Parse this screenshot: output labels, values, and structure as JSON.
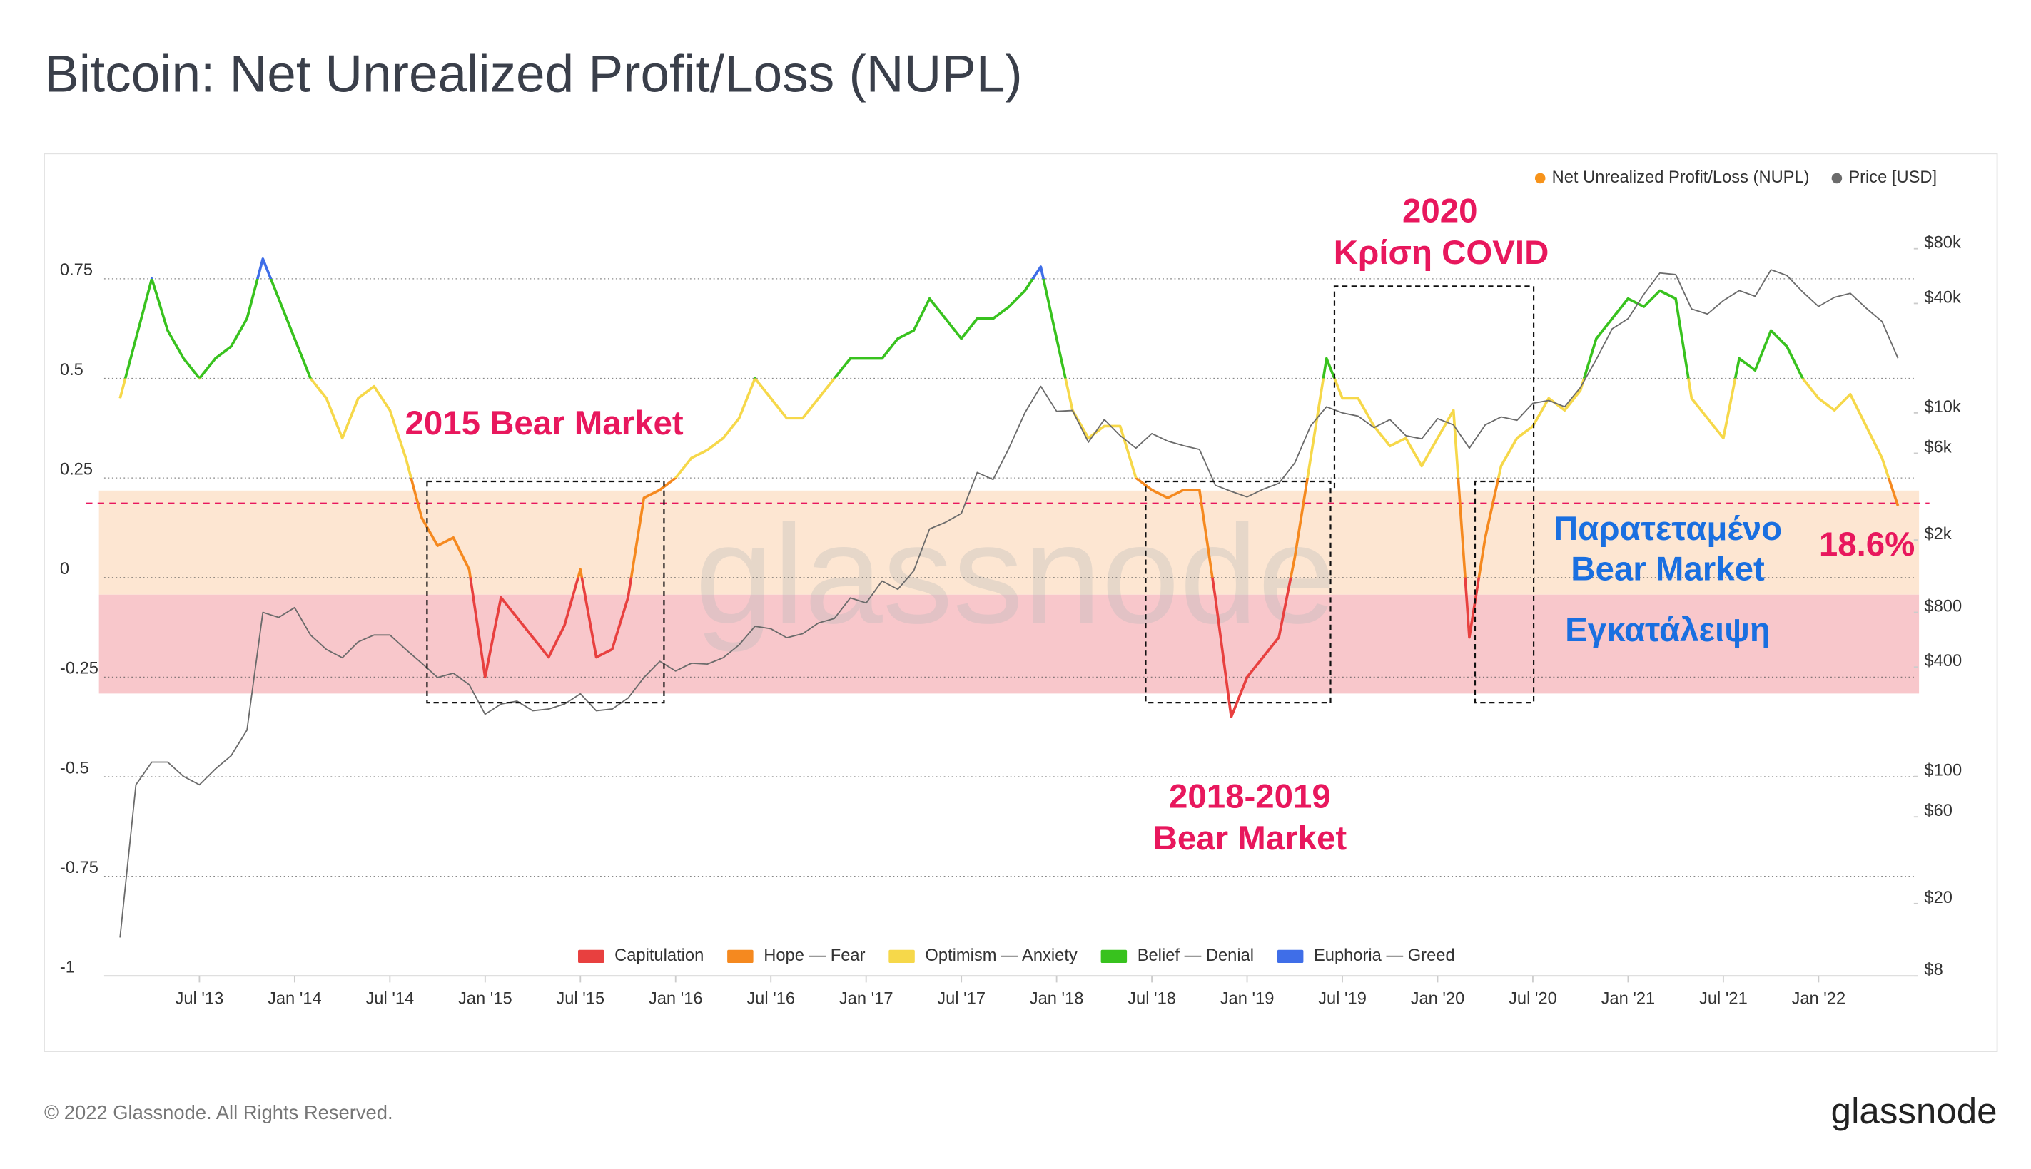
{
  "title": "Bitcoin: Net Unrealized Profit/Loss (NUPL)",
  "chart_data": {
    "type": "line",
    "x": [
      "2013-02",
      "2013-03",
      "2013-04",
      "2013-05",
      "2013-06",
      "2013-07",
      "2013-08",
      "2013-09",
      "2013-10",
      "2013-11",
      "2013-12",
      "2014-01",
      "2014-02",
      "2014-03",
      "2014-04",
      "2014-05",
      "2014-06",
      "2014-07",
      "2014-08",
      "2014-09",
      "2014-10",
      "2014-11",
      "2014-12",
      "2015-01",
      "2015-02",
      "2015-03",
      "2015-04",
      "2015-05",
      "2015-06",
      "2015-07",
      "2015-08",
      "2015-09",
      "2015-10",
      "2015-11",
      "2015-12",
      "2016-01",
      "2016-02",
      "2016-03",
      "2016-04",
      "2016-05",
      "2016-06",
      "2016-07",
      "2016-08",
      "2016-09",
      "2016-10",
      "2016-11",
      "2016-12",
      "2017-01",
      "2017-02",
      "2017-03",
      "2017-04",
      "2017-05",
      "2017-06",
      "2017-07",
      "2017-08",
      "2017-09",
      "2017-10",
      "2017-11",
      "2017-12",
      "2018-01",
      "2018-02",
      "2018-03",
      "2018-04",
      "2018-05",
      "2018-06",
      "2018-07",
      "2018-08",
      "2018-09",
      "2018-10",
      "2018-11",
      "2018-12",
      "2019-01",
      "2019-02",
      "2019-03",
      "2019-04",
      "2019-05",
      "2019-06",
      "2019-07",
      "2019-08",
      "2019-09",
      "2019-10",
      "2019-11",
      "2019-12",
      "2020-01",
      "2020-02",
      "2020-03",
      "2020-04",
      "2020-05",
      "2020-06",
      "2020-07",
      "2020-08",
      "2020-09",
      "2020-10",
      "2020-11",
      "2020-12",
      "2021-01",
      "2021-02",
      "2021-03",
      "2021-04",
      "2021-05",
      "2021-06",
      "2021-07",
      "2021-08",
      "2021-09",
      "2021-10",
      "2021-11",
      "2021-12",
      "2022-01",
      "2022-02",
      "2022-03",
      "2022-04",
      "2022-05",
      "2022-06"
    ],
    "series": [
      {
        "name": "Net Unrealized Profit/Loss (NUPL)",
        "color": "#f7931a",
        "values": [
          0.45,
          0.6,
          0.75,
          0.62,
          0.55,
          0.5,
          0.55,
          0.58,
          0.65,
          0.8,
          0.7,
          0.6,
          0.5,
          0.45,
          0.35,
          0.45,
          0.48,
          0.42,
          0.3,
          0.15,
          0.08,
          0.1,
          0.02,
          -0.25,
          -0.05,
          -0.1,
          -0.15,
          -0.2,
          -0.12,
          0.02,
          -0.2,
          -0.18,
          -0.05,
          0.2,
          0.22,
          0.25,
          0.3,
          0.32,
          0.35,
          0.4,
          0.5,
          0.45,
          0.4,
          0.4,
          0.45,
          0.5,
          0.55,
          0.55,
          0.55,
          0.6,
          0.62,
          0.7,
          0.65,
          0.6,
          0.65,
          0.65,
          0.68,
          0.72,
          0.78,
          0.6,
          0.42,
          0.35,
          0.38,
          0.38,
          0.25,
          0.22,
          0.2,
          0.22,
          0.22,
          -0.05,
          -0.35,
          -0.25,
          -0.2,
          -0.15,
          0.05,
          0.3,
          0.55,
          0.45,
          0.45,
          0.38,
          0.33,
          0.35,
          0.28,
          0.35,
          0.42,
          -0.15,
          0.1,
          0.28,
          0.35,
          0.38,
          0.45,
          0.42,
          0.47,
          0.6,
          0.65,
          0.7,
          0.68,
          0.72,
          0.7,
          0.45,
          0.4,
          0.35,
          0.55,
          0.52,
          0.62,
          0.58,
          0.5,
          0.45,
          0.42,
          0.46,
          0.38,
          0.3,
          0.18
        ]
      },
      {
        "name": "Price [USD]",
        "color": "#6b6b6b",
        "axis": "y2",
        "values": [
          13,
          90,
          120,
          120,
          100,
          90,
          110,
          130,
          180,
          800,
          750,
          850,
          600,
          500,
          450,
          550,
          600,
          600,
          500,
          420,
          350,
          370,
          320,
          220,
          250,
          260,
          230,
          235,
          250,
          285,
          230,
          235,
          270,
          350,
          430,
          380,
          420,
          415,
          450,
          530,
          670,
          650,
          580,
          610,
          700,
          740,
          960,
          900,
          1190,
          1070,
          1350,
          2300,
          2500,
          2800,
          4700,
          4300,
          6400,
          10000,
          14000,
          10200,
          10300,
          6900,
          9200,
          7500,
          6400,
          7700,
          7000,
          6600,
          6300,
          4000,
          3700,
          3450,
          3800,
          4100,
          5300,
          8500,
          10800,
          10000,
          9600,
          8300,
          9200,
          7500,
          7200,
          9300,
          8600,
          6400,
          8600,
          9500,
          9100,
          11300,
          11700,
          10800,
          13800,
          19700,
          29000,
          33000,
          45000,
          58800,
          57700,
          37300,
          35000,
          41500,
          47100,
          43800,
          61300,
          57000,
          46300,
          38500,
          43200,
          45500,
          37700,
          31800,
          20000
        ]
      }
    ],
    "zones": [
      {
        "name": "Capitulation",
        "color": "#e8403f",
        "from": -1,
        "to": 0
      },
      {
        "name": "Hope — Fear",
        "color": "#f5891f",
        "from": 0,
        "to": 0.25
      },
      {
        "name": "Optimism — Anxiety",
        "color": "#f6d84a",
        "from": 0.25,
        "to": 0.5
      },
      {
        "name": "Belief — Denial",
        "color": "#38c21e",
        "from": 0.5,
        "to": 0.75
      },
      {
        "name": "Euphoria — Greed",
        "color": "#3f6ee8",
        "from": 0.75,
        "to": 1
      }
    ],
    "ylim": [
      -1,
      0.95
    ],
    "yticks": [
      0.75,
      0.5,
      0.25,
      0,
      -0.25,
      -0.5,
      -0.75,
      -1
    ],
    "y2lim": [
      8,
      150000
    ],
    "y2scale": "log",
    "y2ticks": [
      {
        "value": 80000,
        "label": "$80k"
      },
      {
        "value": 40000,
        "label": "$40k"
      },
      {
        "value": 10000,
        "label": "$10k"
      },
      {
        "value": 6000,
        "label": "$6k"
      },
      {
        "value": 2000,
        "label": "$2k"
      },
      {
        "value": 800,
        "label": "$800"
      },
      {
        "value": 400,
        "label": "$400"
      },
      {
        "value": 100,
        "label": "$100"
      },
      {
        "value": 60,
        "label": "$60"
      },
      {
        "value": 20,
        "label": "$20"
      },
      {
        "value": 8,
        "label": "$8"
      }
    ],
    "xlim": [
      "2013-01",
      "2022-07"
    ],
    "xticks": [
      {
        "value": "2013-07",
        "label": "Jul '13"
      },
      {
        "value": "2014-01",
        "label": "Jan '14"
      },
      {
        "value": "2014-07",
        "label": "Jul '14"
      },
      {
        "value": "2015-01",
        "label": "Jan '15"
      },
      {
        "value": "2015-07",
        "label": "Jul '15"
      },
      {
        "value": "2016-01",
        "label": "Jan '16"
      },
      {
        "value": "2016-07",
        "label": "Jul '16"
      },
      {
        "value": "2017-01",
        "label": "Jan '17"
      },
      {
        "value": "2017-07",
        "label": "Jul '17"
      },
      {
        "value": "2018-01",
        "label": "Jan '18"
      },
      {
        "value": "2018-07",
        "label": "Jul '18"
      },
      {
        "value": "2019-01",
        "label": "Jan '19"
      },
      {
        "value": "2019-07",
        "label": "Jul '19"
      },
      {
        "value": "2020-01",
        "label": "Jan '20"
      },
      {
        "value": "2020-07",
        "label": "Jul '20"
      },
      {
        "value": "2021-01",
        "label": "Jan '21"
      },
      {
        "value": "2021-07",
        "label": "Jul '21"
      },
      {
        "value": "2022-01",
        "label": "Jan '22"
      }
    ],
    "grid": true,
    "legend": "top-right",
    "reference_line": {
      "value": 0.186,
      "label": "18.6%",
      "color": "#e8175d"
    },
    "annotations": [
      {
        "lines": [
          "2015 Bear Market"
        ],
        "color": "#e8175d"
      },
      {
        "lines": [
          "2018-2019",
          "Bear Market"
        ],
        "color": "#e8175d"
      },
      {
        "lines": [
          "2020",
          "Κρίση COVID"
        ],
        "color": "#e8175d"
      },
      {
        "lines": [
          "Παρατεταμένο",
          "Bear Market"
        ],
        "color": "#1a6fe0"
      },
      {
        "lines": [
          "Εγκατάλειψη"
        ],
        "color": "#1a6fe0"
      }
    ],
    "watermark": "glassnode"
  },
  "footer": "© 2022 Glassnode. All Rights Reserved.",
  "logo": "glassnode"
}
